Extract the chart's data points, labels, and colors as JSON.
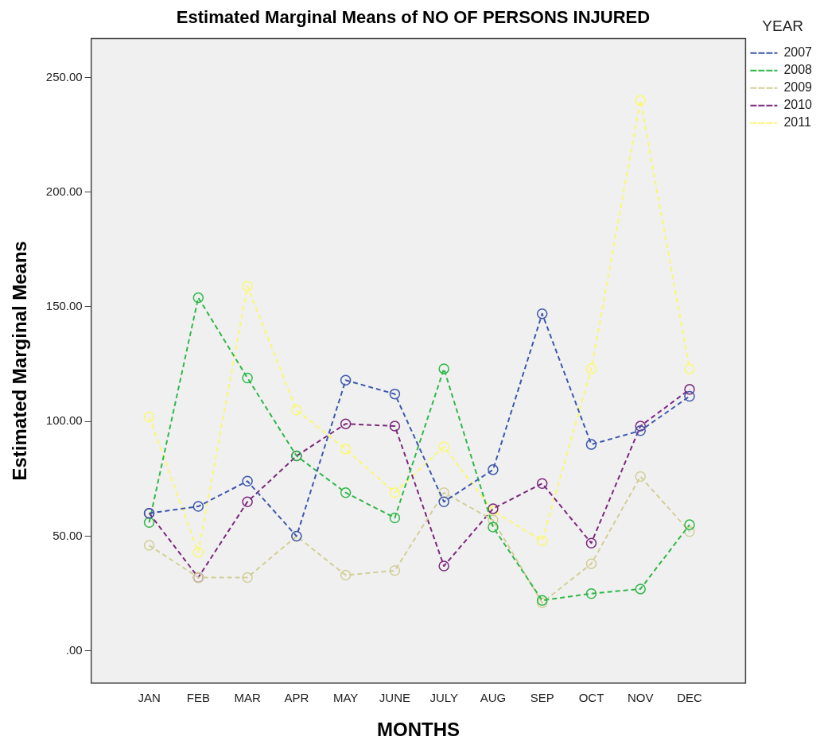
{
  "chart_data": {
    "type": "line",
    "title": "Estimated Marginal Means of NO OF PERSONS INJURED",
    "xlabel": "MONTHS",
    "ylabel": "Estimated Marginal Means",
    "legend_title": "YEAR",
    "categories": [
      "JAN",
      "FEB",
      "MAR",
      "APR",
      "MAY",
      "JUNE",
      "JULY",
      "AUG",
      "SEP",
      "OCT",
      "NOV",
      "DEC"
    ],
    "series": [
      {
        "name": "2007",
        "color": "#3e58ac",
        "values": [
          60,
          63,
          74,
          50,
          118,
          112,
          65,
          79,
          147,
          90,
          96,
          111
        ]
      },
      {
        "name": "2008",
        "color": "#2eb848",
        "values": [
          56,
          154,
          119,
          85,
          69,
          58,
          123,
          54,
          22,
          25,
          27,
          55
        ]
      },
      {
        "name": "2009",
        "color": "#d3ce97",
        "values": [
          46,
          32,
          32,
          50,
          33,
          35,
          69,
          57,
          21,
          38,
          76,
          52
        ]
      },
      {
        "name": "2010",
        "color": "#7c287d",
        "values": [
          60,
          32,
          65,
          85,
          99,
          98,
          37,
          62,
          73,
          47,
          98,
          114
        ]
      },
      {
        "name": "2011",
        "color": "#fbf873",
        "values": [
          102,
          43,
          159,
          105,
          88,
          69,
          89,
          61,
          48,
          123,
          240,
          123
        ]
      }
    ],
    "ylim": [
      -14,
      267
    ],
    "yticks": [
      {
        "value": 0,
        "label": ".00"
      },
      {
        "value": 50,
        "label": "50.00"
      },
      {
        "value": 100,
        "label": "100.00"
      },
      {
        "value": 150,
        "label": "150.00"
      },
      {
        "value": 200,
        "label": "200.00"
      },
      {
        "value": 250,
        "label": "250.00"
      }
    ],
    "grid": false,
    "legend": "right",
    "marker": "circle",
    "line_style": "dashed"
  }
}
